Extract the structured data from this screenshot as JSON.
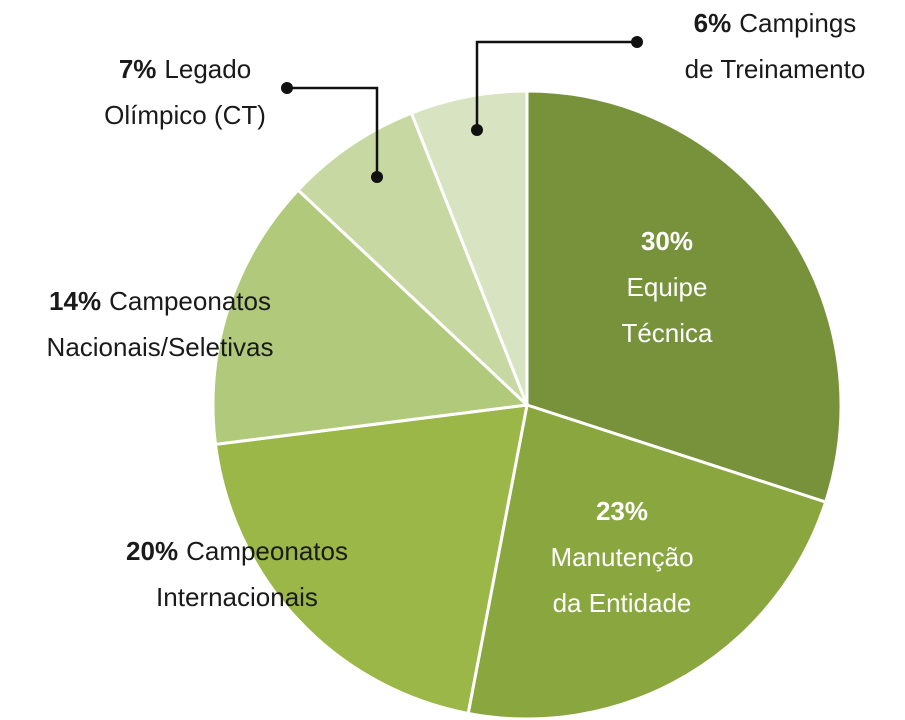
{
  "chart_data": {
    "type": "pie",
    "categories": [
      [
        "Equipe",
        "Técnica"
      ],
      [
        "Manutenção",
        "da Entidade"
      ],
      [
        "Campeonatos",
        "Internacionais"
      ],
      [
        "Campeonatos",
        "Nacionais/Seletivas"
      ],
      [
        "Legado",
        "Olímpico (CT)"
      ],
      [
        "Campings",
        "de Treinamento"
      ]
    ],
    "values": [
      30,
      23,
      20,
      14,
      7,
      6
    ],
    "value_labels": [
      "30%",
      "23%",
      "20%",
      "14%",
      "7%",
      "6%"
    ],
    "colors": [
      "#77923b",
      "#8aa63e",
      "#9bb748",
      "#b1c97b",
      "#c8d8a3",
      "#d8e4c1"
    ]
  }
}
